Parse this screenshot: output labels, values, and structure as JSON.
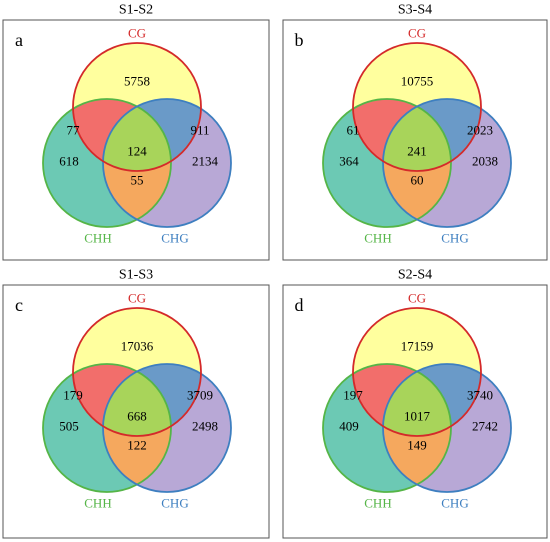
{
  "colors": {
    "cg_fill": "#ffff9e",
    "cg_stroke": "#d42a2a",
    "chh_fill": "#6cc9b4",
    "chh_stroke": "#55b547",
    "chg_fill": "#b8a8d6",
    "chg_stroke": "#3e7fc0",
    "cg_chh": "#f26e6b",
    "cg_chg": "#6a9ac8",
    "chh_chg": "#f5a85e",
    "all": "#a8d45a",
    "cg_label": "#d42a2a",
    "chh_label": "#55b547",
    "chg_label": "#3e7fc0",
    "frame": "#555555"
  },
  "set_labels": {
    "cg": "CG",
    "chh": "CHH",
    "chg": "CHG"
  },
  "panels": [
    {
      "letter": "a",
      "title": "S1-S2",
      "cg_only": "5758",
      "chh_only": "618",
      "chg_only": "2134",
      "cg_chh": "77",
      "cg_chg": "911",
      "chh_chg": "55",
      "all": "124"
    },
    {
      "letter": "b",
      "title": "S3-S4",
      "cg_only": "10755",
      "chh_only": "364",
      "chg_only": "2038",
      "cg_chh": "61",
      "cg_chg": "2023",
      "chh_chg": "60",
      "all": "241"
    },
    {
      "letter": "c",
      "title": "S1-S3",
      "cg_only": "17036",
      "chh_only": "505",
      "chg_only": "2498",
      "cg_chh": "179",
      "cg_chg": "3709",
      "chh_chg": "122",
      "all": "668"
    },
    {
      "letter": "d",
      "title": "S2-S4",
      "cg_only": "17159",
      "chh_only": "409",
      "chg_only": "2742",
      "cg_chh": "197",
      "cg_chg": "3740",
      "chh_chg": "149",
      "all": "1017"
    }
  ]
}
